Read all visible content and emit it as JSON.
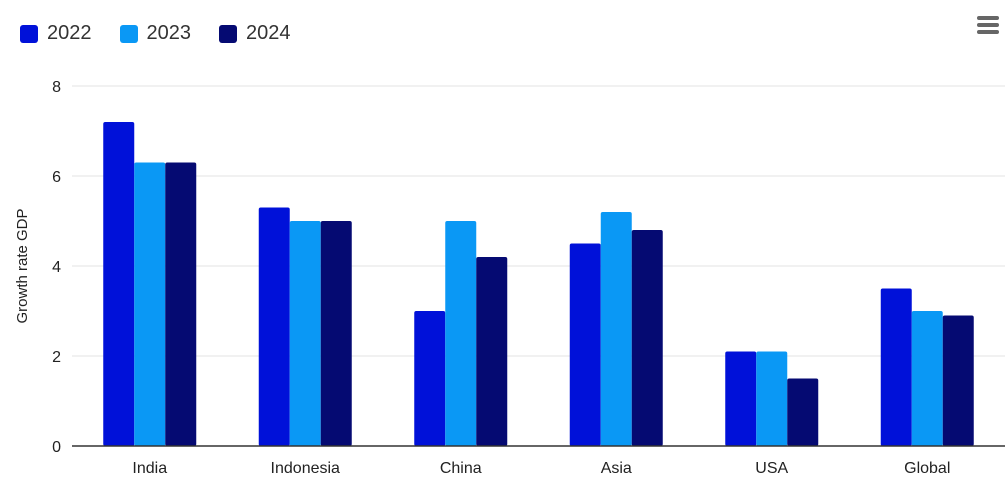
{
  "chart_data": {
    "type": "bar",
    "categories": [
      "India",
      "Indonesia",
      "China",
      "Asia",
      "USA",
      "Global"
    ],
    "series": [
      {
        "name": "2022",
        "color": "#0011d9",
        "values": [
          7.2,
          5.3,
          3.0,
          4.5,
          2.1,
          3.5
        ]
      },
      {
        "name": "2023",
        "color": "#0a98f5",
        "values": [
          6.3,
          5.0,
          5.0,
          5.2,
          2.1,
          3.0
        ]
      },
      {
        "name": "2024",
        "color": "#050a72",
        "values": [
          6.3,
          5.0,
          4.2,
          4.8,
          1.5,
          2.9
        ]
      }
    ],
    "ylabel": "Growth rate GDP",
    "ylim": [
      0,
      8
    ],
    "yticks": [
      0,
      2,
      4,
      6,
      8
    ],
    "grid": true,
    "legend_position": "top-left"
  },
  "menu": {
    "icon": "hamburger-menu-icon"
  }
}
